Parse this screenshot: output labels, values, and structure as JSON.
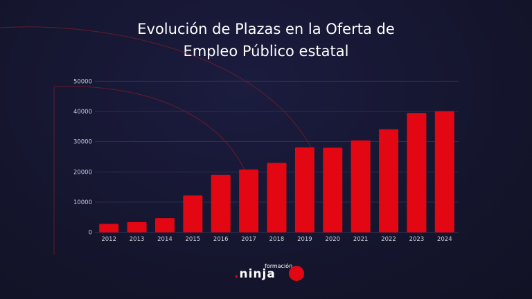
{
  "chart_data": {
    "type": "bar",
    "title": "Evolución de Plazas en la Oferta de Empleo Público estatal",
    "title_lines": [
      "Evolución de Plazas en la Oferta de",
      "Empleo Público estatal"
    ],
    "categories": [
      "2012",
      "2013",
      "2014",
      "2015",
      "2016",
      "2017",
      "2018",
      "2019",
      "2020",
      "2021",
      "2022",
      "2023",
      "2024"
    ],
    "values": [
      2800,
      3400,
      4700,
      12200,
      19000,
      20800,
      23000,
      28100,
      28000,
      30400,
      34100,
      39500,
      40100
    ],
    "xlabel": "",
    "ylabel": "",
    "ylim": [
      0,
      50000
    ],
    "yticks": [
      "0",
      "10000",
      "20000",
      "30000",
      "40000",
      "50000"
    ],
    "grid": true,
    "bar_color": "#e30613",
    "background_color": "#16172f"
  },
  "logo": {
    "small": "formación",
    "dot": ".",
    "big": "ninja"
  }
}
